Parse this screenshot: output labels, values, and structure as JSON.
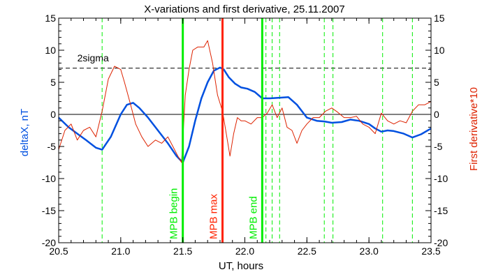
{
  "chart_data": {
    "type": "line",
    "title": "X-variations and first derivative, 25.11.2007",
    "xlabel": "UT, hours",
    "ylabel_left": "deltaX, nT",
    "ylabel_right": "First derivative*10",
    "xlim": [
      20.5,
      23.5
    ],
    "ylim": [
      -20,
      15
    ],
    "x_ticks": [
      "20.5",
      "21.0",
      "21.5",
      "22.0",
      "22.5",
      "23.0",
      "23.5"
    ],
    "y_ticks": [
      "-20",
      "-15",
      "-10",
      "-5",
      "0",
      "5",
      "10",
      "15"
    ],
    "grid": false,
    "threshold": {
      "label": "2sigma",
      "value": 7.2
    },
    "zero_line": 0,
    "vertical_markers": [
      {
        "label": "MPB begin",
        "x": 21.5,
        "color": "#00ee00"
      },
      {
        "label": "MPB max",
        "x": 21.82,
        "color": "#ff2200"
      },
      {
        "label": "MPB end",
        "x": 22.14,
        "color": "#00ee00"
      }
    ],
    "dashed_markers_x": [
      20.85,
      22.17,
      22.22,
      22.28,
      22.64,
      22.71,
      23.11,
      23.35
    ],
    "series": [
      {
        "name": "deltaX, nT",
        "color": "#0050e0",
        "x": [
          20.5,
          20.58,
          20.65,
          20.72,
          20.8,
          20.85,
          20.92,
          21.0,
          21.05,
          21.1,
          21.15,
          21.22,
          21.3,
          21.38,
          21.45,
          21.5,
          21.55,
          21.6,
          21.65,
          21.7,
          21.75,
          21.8,
          21.83,
          21.87,
          21.92,
          21.97,
          22.02,
          22.08,
          22.14,
          22.2,
          22.28,
          22.35,
          22.42,
          22.5,
          22.58,
          22.64,
          22.7,
          22.78,
          22.85,
          22.92,
          23.0,
          23.05,
          23.1,
          23.15,
          23.2,
          23.28,
          23.35,
          23.42,
          23.5
        ],
        "y": [
          -0.5,
          -2.0,
          -3.0,
          -4.0,
          -5.2,
          -5.5,
          -3.5,
          0.0,
          1.5,
          1.8,
          1.0,
          -0.5,
          -2.5,
          -4.5,
          -6.5,
          -7.5,
          -5.0,
          -1.0,
          2.5,
          5.0,
          6.8,
          7.3,
          7.0,
          5.8,
          4.8,
          4.2,
          4.0,
          3.5,
          2.5,
          2.5,
          2.6,
          2.7,
          1.5,
          -0.5,
          -1.0,
          -1.1,
          -1.3,
          -1.2,
          -0.8,
          -1.0,
          -1.5,
          -2.2,
          -2.7,
          -2.5,
          -2.6,
          -3.0,
          -3.6,
          -3.1,
          -2.2
        ]
      },
      {
        "name": "First derivative*10",
        "color": "#dd2200",
        "x": [
          20.5,
          20.55,
          20.6,
          20.65,
          20.7,
          20.75,
          20.8,
          20.85,
          20.9,
          20.95,
          21.0,
          21.03,
          21.08,
          21.12,
          21.17,
          21.22,
          21.28,
          21.33,
          21.38,
          21.42,
          21.46,
          21.49,
          21.52,
          21.55,
          21.58,
          21.62,
          21.67,
          21.7,
          21.74,
          21.78,
          21.82,
          21.85,
          21.88,
          21.91,
          21.94,
          21.97,
          22.0,
          22.05,
          22.1,
          22.14,
          22.18,
          22.22,
          22.26,
          22.3,
          22.34,
          22.38,
          22.42,
          22.46,
          22.5,
          22.55,
          22.6,
          22.65,
          22.7,
          22.75,
          22.8,
          22.85,
          22.9,
          22.95,
          23.0,
          23.05,
          23.1,
          23.15,
          23.2,
          23.25,
          23.3,
          23.35,
          23.4,
          23.45,
          23.5
        ],
        "y": [
          -5.5,
          -2.5,
          -1.5,
          -4.0,
          -2.5,
          -2.0,
          -3.5,
          0.5,
          5.5,
          7.5,
          7.0,
          5.0,
          1.5,
          -1.5,
          -3.5,
          -5.0,
          -4.0,
          -4.5,
          -3.5,
          -5.0,
          -6.5,
          -7.5,
          3.0,
          7.0,
          10.0,
          10.5,
          10.5,
          11.5,
          8.0,
          3.0,
          0.5,
          -3.0,
          -6.5,
          -3.0,
          -0.5,
          -1.0,
          -1.0,
          -1.5,
          -0.5,
          -0.5,
          0.2,
          1.5,
          -0.5,
          1.0,
          -2.0,
          -2.5,
          -4.5,
          -2.5,
          -1.5,
          -0.5,
          -0.5,
          0.5,
          1.0,
          0.3,
          -0.5,
          -0.5,
          -0.3,
          -1.5,
          -2.0,
          -3.0,
          0.2,
          -1.0,
          -1.5,
          -1.0,
          -1.3,
          0.5,
          1.5,
          1.5,
          2.0
        ]
      }
    ]
  },
  "colors": {
    "axis": "#000000",
    "threshold_line": "#000000",
    "green_marker": "#00ee00",
    "red_marker": "#ff2200",
    "left_label": "#0050e0",
    "right_label": "#dd2200"
  }
}
